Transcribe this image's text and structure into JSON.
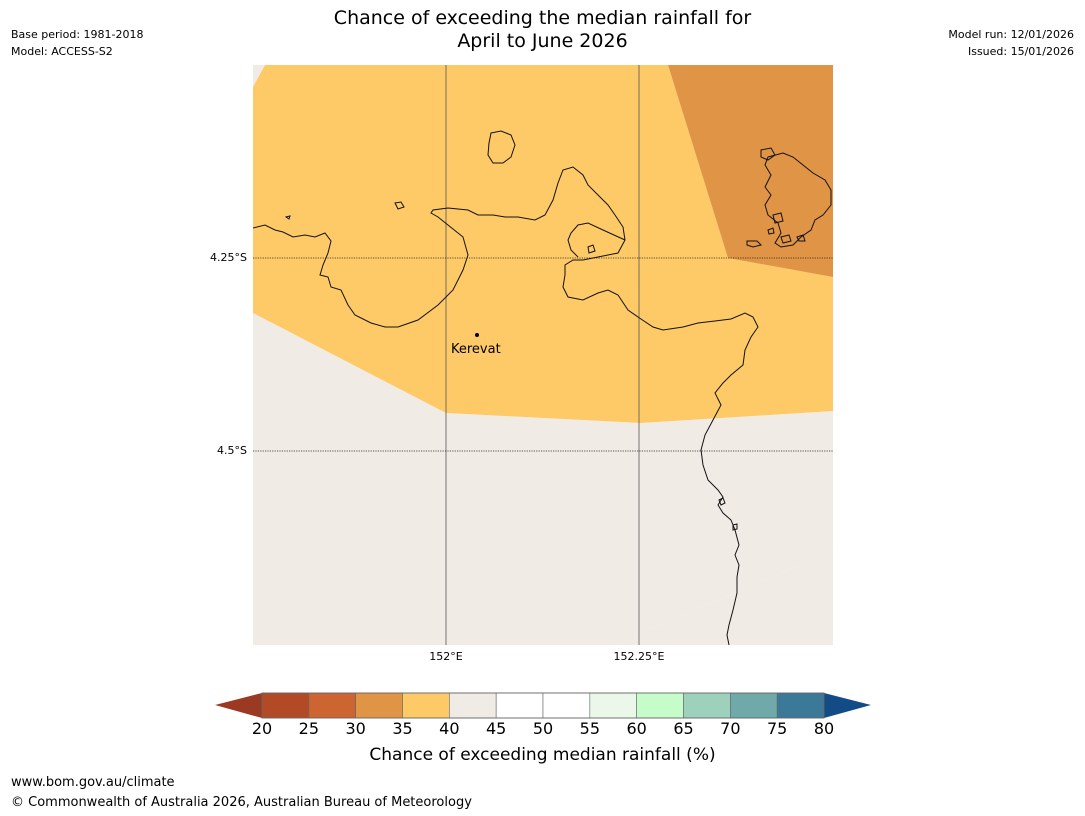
{
  "header": {
    "title_line1": "Chance of exceeding the median rainfall for",
    "title_line2": "April to June 2026",
    "base_period": "Base period: 1981-2018",
    "model": "Model: ACCESS-S2",
    "model_run": "Model run: 12/01/2026",
    "issued": "Issued: 15/01/2026"
  },
  "map": {
    "latitude_labels": [
      "4.25°S",
      "4.5°S"
    ],
    "longitude_labels": [
      "152°E",
      "152.25°E"
    ],
    "place": {
      "name": "Kerevat"
    },
    "regions": [
      {
        "band": "30-35",
        "color": "#e09446"
      },
      {
        "band": "35-40",
        "color": "#fdca67"
      },
      {
        "band": "40-45",
        "color": "#f1ebe6"
      }
    ]
  },
  "colorbar": {
    "label": "Chance of exceeding median rainfall (%)",
    "ticks": [
      "20",
      "25",
      "30",
      "35",
      "40",
      "45",
      "50",
      "55",
      "60",
      "65",
      "70",
      "75",
      "80"
    ],
    "under_color": "#9a3a23",
    "over_color": "#134b86",
    "colors": [
      "#b34a26",
      "#cc6531",
      "#e09446",
      "#fdca67",
      "#f1ebe6",
      "#ffffff",
      "#ffffff",
      "#eaf7e9",
      "#c6fcc9",
      "#9dd1bc",
      "#6fa9a9",
      "#3c7898"
    ]
  },
  "footer": {
    "website": "www.bom.gov.au/climate",
    "copyright": "© Commonwealth of Australia 2026, Australian Bureau of Meteorology"
  }
}
